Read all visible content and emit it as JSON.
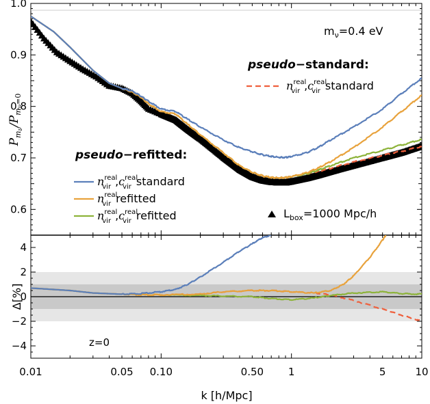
{
  "chart_data": [
    {
      "panel": "top",
      "type": "line",
      "xscale": "log",
      "xlim": [
        0.01,
        10
      ],
      "ylim": [
        0.55,
        1.0
      ],
      "yticks": [
        "0.6",
        "0.7",
        "0.8",
        "0.9",
        "1.0"
      ],
      "ylabel": "P_{m_ν}/P_{m_ν=0}",
      "annotations": {
        "mass": "m_ν=0.4 eV",
        "box": "L_box=1000 Mpc/h"
      },
      "legend_groups": [
        {
          "title": "pseudo−standard:",
          "placement": "upper-right",
          "entries": [
            "n_vir^real,c_vir^real standard"
          ]
        },
        {
          "title": "pseudo−refitted:",
          "placement": "middle-left",
          "entries": [
            "n_vir^real,c_vir^real standard",
            "n_vir^real refitted",
            "n_vir^real,c_vir^real refitted"
          ]
        }
      ],
      "series": [
        {
          "name": "n_vir^real,c_vir^real standard",
          "group": "pseudo−refitted",
          "color": "#5b7fba",
          "style": "solid",
          "points": [
            [
              0.01,
              0.975
            ],
            [
              0.015,
              0.945
            ],
            [
              0.02,
              0.915
            ],
            [
              0.03,
              0.87
            ],
            [
              0.04,
              0.845
            ],
            [
              0.05,
              0.835
            ],
            [
              0.06,
              0.83
            ],
            [
              0.07,
              0.82
            ],
            [
              0.08,
              0.81
            ],
            [
              0.1,
              0.795
            ],
            [
              0.13,
              0.79
            ],
            [
              0.16,
              0.775
            ],
            [
              0.2,
              0.76
            ],
            [
              0.3,
              0.735
            ],
            [
              0.4,
              0.72
            ],
            [
              0.5,
              0.712
            ],
            [
              0.6,
              0.706
            ],
            [
              0.7,
              0.703
            ],
            [
              0.8,
              0.701
            ],
            [
              0.9,
              0.701
            ],
            [
              1.0,
              0.703
            ],
            [
              1.3,
              0.71
            ],
            [
              1.6,
              0.72
            ],
            [
              2.0,
              0.735
            ],
            [
              3.0,
              0.76
            ],
            [
              5.0,
              0.795
            ],
            [
              7.0,
              0.825
            ],
            [
              10.0,
              0.855
            ]
          ]
        },
        {
          "name": "n_vir^real refitted",
          "group": "pseudo−refitted",
          "color": "#e8a23c",
          "style": "solid",
          "points": [
            [
              0.01,
              0.975
            ],
            [
              0.015,
              0.945
            ],
            [
              0.02,
              0.915
            ],
            [
              0.03,
              0.87
            ],
            [
              0.04,
              0.845
            ],
            [
              0.05,
              0.835
            ],
            [
              0.06,
              0.828
            ],
            [
              0.07,
              0.818
            ],
            [
              0.08,
              0.805
            ],
            [
              0.1,
              0.79
            ],
            [
              0.13,
              0.785
            ],
            [
              0.16,
              0.765
            ],
            [
              0.2,
              0.745
            ],
            [
              0.3,
              0.71
            ],
            [
              0.4,
              0.685
            ],
            [
              0.5,
              0.672
            ],
            [
              0.6,
              0.665
            ],
            [
              0.7,
              0.662
            ],
            [
              0.8,
              0.661
            ],
            [
              0.9,
              0.662
            ],
            [
              1.0,
              0.664
            ],
            [
              1.3,
              0.671
            ],
            [
              1.6,
              0.68
            ],
            [
              2.0,
              0.693
            ],
            [
              3.0,
              0.72
            ],
            [
              5.0,
              0.76
            ],
            [
              7.0,
              0.79
            ],
            [
              10.0,
              0.822
            ]
          ]
        },
        {
          "name": "n_vir^real,c_vir^real refitted",
          "group": "pseudo−refitted",
          "color": "#8db33a",
          "style": "solid",
          "points": [
            [
              0.01,
              0.975
            ],
            [
              0.015,
              0.945
            ],
            [
              0.02,
              0.915
            ],
            [
              0.03,
              0.87
            ],
            [
              0.04,
              0.845
            ],
            [
              0.05,
              0.835
            ],
            [
              0.06,
              0.828
            ],
            [
              0.07,
              0.818
            ],
            [
              0.08,
              0.805
            ],
            [
              0.1,
              0.79
            ],
            [
              0.13,
              0.785
            ],
            [
              0.16,
              0.765
            ],
            [
              0.2,
              0.745
            ],
            [
              0.3,
              0.71
            ],
            [
              0.4,
              0.685
            ],
            [
              0.5,
              0.672
            ],
            [
              0.6,
              0.665
            ],
            [
              0.7,
              0.662
            ],
            [
              0.8,
              0.661
            ],
            [
              0.9,
              0.662
            ],
            [
              1.0,
              0.664
            ],
            [
              1.3,
              0.669
            ],
            [
              1.6,
              0.676
            ],
            [
              2.0,
              0.685
            ],
            [
              3.0,
              0.7
            ],
            [
              5.0,
              0.715
            ],
            [
              7.0,
              0.725
            ],
            [
              10.0,
              0.736
            ]
          ]
        },
        {
          "name": "n_vir^real,c_vir^real standard",
          "group": "pseudo−standard",
          "color": "#ef5f3c",
          "style": "dashed",
          "points": [
            [
              0.01,
              0.975
            ],
            [
              0.015,
              0.945
            ],
            [
              0.02,
              0.915
            ],
            [
              0.03,
              0.87
            ],
            [
              0.04,
              0.845
            ],
            [
              0.05,
              0.835
            ],
            [
              0.06,
              0.828
            ],
            [
              0.07,
              0.818
            ],
            [
              0.08,
              0.805
            ],
            [
              0.1,
              0.79
            ],
            [
              0.13,
              0.785
            ],
            [
              0.16,
              0.765
            ],
            [
              0.2,
              0.745
            ],
            [
              0.3,
              0.71
            ],
            [
              0.4,
              0.685
            ],
            [
              0.5,
              0.672
            ],
            [
              0.6,
              0.665
            ],
            [
              0.7,
              0.662
            ],
            [
              0.8,
              0.661
            ],
            [
              0.9,
              0.662
            ],
            [
              1.0,
              0.664
            ],
            [
              1.3,
              0.669
            ],
            [
              1.6,
              0.674
            ],
            [
              2.0,
              0.68
            ],
            [
              3.0,
              0.692
            ],
            [
              5.0,
              0.705
            ],
            [
              7.0,
              0.713
            ],
            [
              10.0,
              0.722
            ]
          ]
        },
        {
          "name": "L_box=1000 Mpc/h",
          "color": "#000000",
          "style": "markers",
          "points": [
            [
              0.01,
              0.97
            ],
            [
              0.0126,
              0.937
            ],
            [
              0.0158,
              0.91
            ],
            [
              0.02,
              0.893
            ],
            [
              0.0251,
              0.877
            ],
            [
              0.0316,
              0.863
            ],
            [
              0.0398,
              0.845
            ],
            [
              0.05,
              0.84
            ],
            [
              0.06,
              0.83
            ],
            [
              0.07,
              0.815
            ],
            [
              0.08,
              0.8
            ],
            [
              0.1,
              0.79
            ],
            [
              0.13,
              0.778
            ],
            [
              0.16,
              0.76
            ],
            [
              0.2,
              0.742
            ],
            [
              0.3,
              0.706
            ],
            [
              0.4,
              0.682
            ],
            [
              0.5,
              0.668
            ],
            [
              0.6,
              0.661
            ],
            [
              0.7,
              0.658
            ],
            [
              0.8,
              0.657
            ],
            [
              0.9,
              0.657
            ],
            [
              1.0,
              0.659
            ],
            [
              1.3,
              0.665
            ],
            [
              1.6,
              0.671
            ],
            [
              2.0,
              0.678
            ],
            [
              3.0,
              0.69
            ],
            [
              5.0,
              0.705
            ],
            [
              7.0,
              0.715
            ],
            [
              10.0,
              0.728
            ]
          ]
        }
      ]
    },
    {
      "panel": "bottom",
      "type": "line",
      "xscale": "log",
      "xlim": [
        0.01,
        10
      ],
      "ylim": [
        -5,
        5
      ],
      "yticks": [
        "−4",
        "−2",
        "0",
        "2",
        "4"
      ],
      "xticks": [
        "0.01",
        "0.05",
        "0.10",
        "0.50",
        "1",
        "5",
        "10"
      ],
      "ylabel": "Δ[%]",
      "xlabel": "k [h/Mpc]",
      "bands": {
        "light": [
          -2,
          2
        ],
        "dark": [
          -1,
          1
        ],
        "light_color": "#e6e6e6",
        "dark_color": "#c9c9c9"
      },
      "annotation": "z=0",
      "series": [
        {
          "name": "n_vir^real,c_vir^real standard",
          "color": "#5b7fba",
          "style": "solid",
          "points": [
            [
              0.01,
              0.7
            ],
            [
              0.02,
              0.5
            ],
            [
              0.03,
              0.3
            ],
            [
              0.05,
              0.2
            ],
            [
              0.07,
              0.25
            ],
            [
              0.1,
              0.4
            ],
            [
              0.13,
              0.6
            ],
            [
              0.16,
              1.0
            ],
            [
              0.2,
              1.6
            ],
            [
              0.3,
              2.8
            ],
            [
              0.4,
              3.7
            ],
            [
              0.5,
              4.3
            ],
            [
              0.6,
              4.8
            ],
            [
              0.7,
              5.0
            ]
          ]
        },
        {
          "name": "n_vir^real refitted",
          "color": "#e8a23c",
          "style": "solid",
          "points": [
            [
              0.01,
              0.7
            ],
            [
              0.02,
              0.5
            ],
            [
              0.03,
              0.3
            ],
            [
              0.05,
              0.2
            ],
            [
              0.07,
              0.15
            ],
            [
              0.1,
              0.15
            ],
            [
              0.2,
              0.2
            ],
            [
              0.3,
              0.4
            ],
            [
              0.5,
              0.5
            ],
            [
              0.7,
              0.5
            ],
            [
              1.0,
              0.4
            ],
            [
              1.5,
              0.3
            ],
            [
              2.0,
              0.5
            ],
            [
              2.5,
              1.0
            ],
            [
              3.0,
              1.7
            ],
            [
              4.0,
              3.2
            ],
            [
              5.0,
              4.6
            ],
            [
              5.3,
              5.0
            ]
          ]
        },
        {
          "name": "n_vir^real,c_vir^real refitted",
          "color": "#8db33a",
          "style": "solid",
          "points": [
            [
              0.01,
              0.7
            ],
            [
              0.02,
              0.5
            ],
            [
              0.03,
              0.3
            ],
            [
              0.05,
              0.2
            ],
            [
              0.07,
              0.15
            ],
            [
              0.1,
              0.15
            ],
            [
              0.2,
              0.1
            ],
            [
              0.3,
              0.05
            ],
            [
              0.5,
              0.0
            ],
            [
              0.7,
              -0.15
            ],
            [
              1.0,
              -0.25
            ],
            [
              1.5,
              -0.1
            ],
            [
              2.0,
              0.1
            ],
            [
              3.0,
              0.3
            ],
            [
              5.0,
              0.4
            ],
            [
              7.0,
              0.25
            ],
            [
              10.0,
              0.2
            ]
          ]
        },
        {
          "name": "n_vir^real,c_vir^real standard (pseudo−standard)",
          "color": "#ef5f3c",
          "style": "dashed",
          "points": [
            [
              0.01,
              0.7
            ],
            [
              0.02,
              0.5
            ],
            [
              0.03,
              0.3
            ],
            [
              0.05,
              0.2
            ],
            [
              0.07,
              0.15
            ],
            [
              0.1,
              0.15
            ],
            [
              0.2,
              0.2
            ],
            [
              0.3,
              0.4
            ],
            [
              0.5,
              0.5
            ],
            [
              0.7,
              0.5
            ],
            [
              1.0,
              0.4
            ],
            [
              1.5,
              0.3
            ],
            [
              2.0,
              0.15
            ],
            [
              3.0,
              -0.3
            ],
            [
              5.0,
              -1.0
            ],
            [
              7.0,
              -1.5
            ],
            [
              10.0,
              -2.0
            ]
          ]
        }
      ]
    }
  ]
}
